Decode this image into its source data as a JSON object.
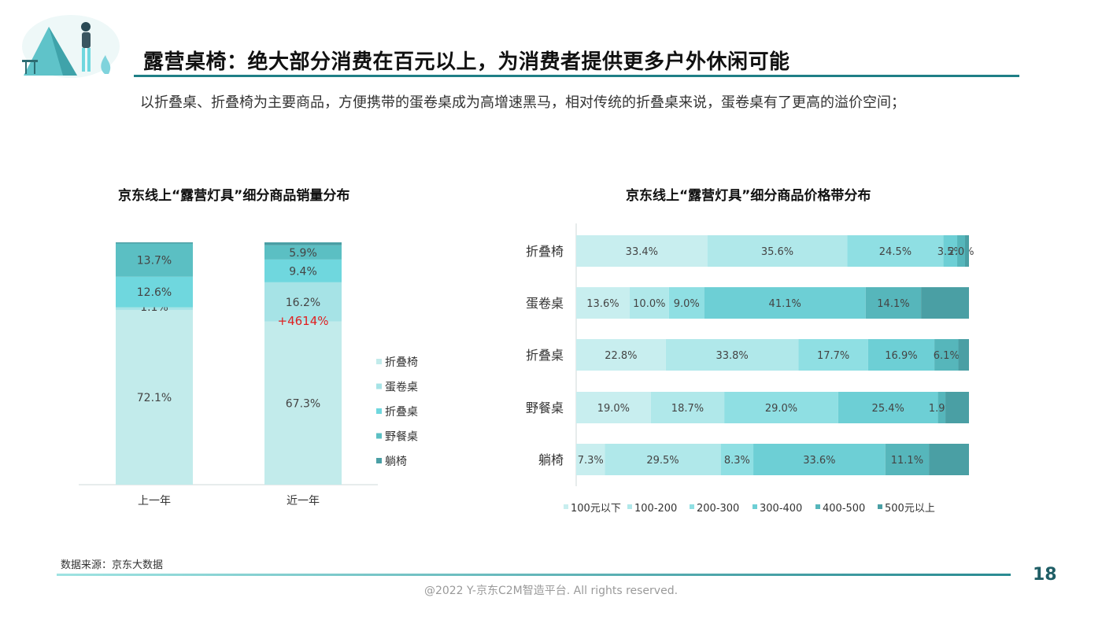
{
  "header": {
    "title": "露营桌椅：绝大部分消费在百元以上，为消费者提供更多户外休闲可能",
    "description": "以折叠桌、折叠椅为主要商品，方便携带的蛋卷桌成为高增速黑马，相对传统的折叠桌来说，蛋卷桌有了更高的溢价空间；"
  },
  "footer": {
    "source": "数据来源：京东大数据",
    "page_number": "18",
    "copyright": "@2022 Y-京东C2M智造平台. All rights reserved."
  },
  "colors": {
    "accent": "#1f7f86",
    "highlight_red": "#e02020"
  },
  "chart_data": [
    {
      "type": "bar",
      "stacked": true,
      "normalized": true,
      "title": "京东线上“露营灯具”细分商品销量分布",
      "categories": [
        "上一年",
        "近一年"
      ],
      "series": [
        {
          "name": "折叠椅",
          "color": "#c2ebeb",
          "values": [
            72.1,
            67.3
          ],
          "labels": [
            "72.1%",
            "67.3%"
          ]
        },
        {
          "name": "蛋卷桌",
          "color": "#a6e3e6",
          "values": [
            1.1,
            16.2
          ],
          "labels": [
            "1.1%",
            "16.2%"
          ]
        },
        {
          "name": "折叠桌",
          "color": "#6fd7de",
          "values": [
            12.6,
            9.4
          ],
          "labels": [
            "12.6%",
            "9.4%"
          ]
        },
        {
          "name": "野餐桌",
          "color": "#5bbfc3",
          "values": [
            13.7,
            5.9
          ],
          "labels": [
            "13.7%",
            "5.9%"
          ]
        },
        {
          "name": "躺椅",
          "color": "#4a9fa5",
          "values": [
            0.5,
            1.2
          ],
          "labels": [
            "",
            ""
          ]
        }
      ],
      "annotations": [
        {
          "category": "近一年",
          "series": "蛋卷桌",
          "text": "+4614%"
        }
      ],
      "legend": "right",
      "ylim": [
        0,
        100
      ]
    },
    {
      "type": "bar",
      "orientation": "horizontal",
      "stacked": true,
      "normalized": true,
      "title": "京东线上“露营灯具”细分商品价格带分布",
      "categories": [
        "折叠椅",
        "蛋卷桌",
        "折叠桌",
        "野餐桌",
        "躺椅"
      ],
      "series": [
        {
          "name": "100元以下",
          "color": "#c8eeef",
          "values": [
            33.4,
            13.6,
            22.8,
            19.0,
            7.3
          ],
          "labels": [
            "33.4%",
            "13.6%",
            "22.8%",
            "19.0%",
            "7.3%"
          ]
        },
        {
          "name": "100-200",
          "color": "#b0e8ea",
          "values": [
            35.6,
            10.0,
            33.8,
            18.7,
            29.5
          ],
          "labels": [
            "35.6%",
            "10.0%",
            "33.8%",
            "18.7%",
            "29.5%"
          ]
        },
        {
          "name": "200-300",
          "color": "#8fdfe3",
          "values": [
            24.5,
            9.0,
            17.7,
            29.0,
            8.3
          ],
          "labels": [
            "24.5%",
            "9.0%",
            "17.7%",
            "29.0%",
            "8.3%"
          ]
        },
        {
          "name": "300-400",
          "color": "#6dcfd5",
          "values": [
            3.5,
            41.1,
            16.9,
            25.4,
            33.6
          ],
          "labels": [
            "3.5%",
            "41.1%",
            "16.9%",
            "25.4%",
            "33.6%"
          ]
        },
        {
          "name": "400-500",
          "color": "#56b6bb",
          "values": [
            2.0,
            14.1,
            6.1,
            1.9,
            11.1
          ],
          "labels": [
            "2.0%",
            "14.1%",
            "6.1%",
            "1.9%",
            "11.1%"
          ]
        },
        {
          "name": "500元以上",
          "color": "#4a9fa4",
          "values": [
            1.0,
            12.2,
            2.7,
            6.0,
            10.2
          ],
          "labels": [
            "",
            "",
            "",
            "",
            ""
          ]
        }
      ],
      "legend": "bottom",
      "xlim": [
        0,
        100
      ]
    }
  ]
}
